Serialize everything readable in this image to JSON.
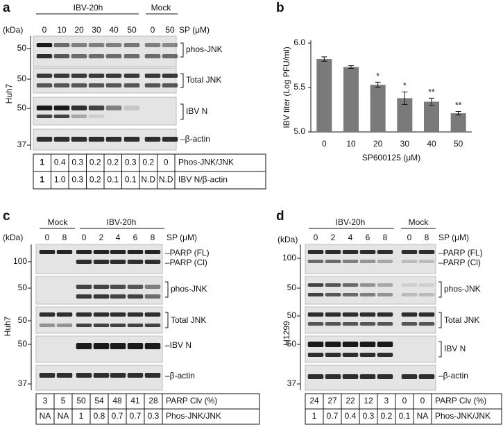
{
  "panel_a": {
    "label": "a",
    "groups": [
      "IBV-20h",
      "Mock"
    ],
    "kda": "(kDa)",
    "lanes": [
      "0",
      "10",
      "20",
      "30",
      "40",
      "50",
      "0",
      "50"
    ],
    "treatment": "SP (μM)",
    "cell_line": "Huh7",
    "markers": [
      "50",
      "50",
      "50",
      "37"
    ],
    "bands": [
      "phos-JNK",
      "Total JNK",
      "IBV N",
      "–β-actin"
    ],
    "table": {
      "rows": [
        {
          "values": [
            "1",
            "0.4",
            "0.3",
            "0.2",
            "0.2",
            "0.3",
            "0.2",
            "0"
          ],
          "label": "Phos-JNK/JNK"
        },
        {
          "values": [
            "1",
            "1.0",
            "0.3",
            "0.2",
            "0.1",
            "0.1",
            "N.D",
            "N.D"
          ],
          "label": "IBV N/β-actin"
        }
      ]
    }
  },
  "chart_data": {
    "type": "bar",
    "label": "b",
    "categories": [
      "0",
      "10",
      "20",
      "30",
      "40",
      "50"
    ],
    "values": [
      5.82,
      5.73,
      5.53,
      5.38,
      5.34,
      5.21
    ],
    "errors": [
      0.025,
      0.015,
      0.03,
      0.07,
      0.04,
      0.02
    ],
    "significance": [
      null,
      null,
      "*",
      "*",
      "**",
      "**"
    ],
    "color": "#7a7a7a",
    "ylim": [
      5.0,
      6.0
    ],
    "yticks": [
      {
        "value": 5,
        "label": "5.0"
      },
      {
        "value": 5.5,
        "label": "5.5"
      },
      {
        "value": 6,
        "label": "6.0"
      }
    ],
    "x_label": "SP600125 (μM)",
    "y_label": "IBV titer (Log PFU/ml)"
  },
  "panel_c": {
    "label": "c",
    "groups": [
      "Mock",
      "IBV-20h"
    ],
    "kda": "(kDa)",
    "lanes": [
      "0",
      "8",
      "0",
      "2",
      "4",
      "6",
      "8"
    ],
    "treatment": "SP (μM)",
    "cell_line": "Huh7",
    "markers": [
      "100",
      "50",
      "50",
      "50",
      "37"
    ],
    "bands": [
      "–PARP (FL)",
      "–PARP (Cl)",
      "phos-JNK",
      "Total JNK",
      "–IBV N",
      "–β-actin"
    ],
    "table": {
      "rows": [
        {
          "values": [
            "3",
            "5",
            "50",
            "54",
            "48",
            "41",
            "28"
          ],
          "label": "PARP Clv (%)"
        },
        {
          "values": [
            "NA",
            "NA",
            "1",
            "0.8",
            "0.7",
            "0.7",
            "0.3"
          ],
          "label": "Phos-JNK/JNK"
        }
      ]
    }
  },
  "panel_d": {
    "label": "d",
    "groups": [
      "IBV-20h",
      "Mock"
    ],
    "kda": "(kDa)",
    "lanes": [
      "0",
      "2",
      "4",
      "6",
      "8",
      "0",
      "8"
    ],
    "treatment": "SP (μM)",
    "cell_line": "H1299",
    "markers": [
      "100",
      "50",
      "50",
      "50",
      "37"
    ],
    "bands": [
      "–PARP (FL)",
      "–PARP (Cl)",
      "phos-JNK",
      "Total JNK",
      "IBV N",
      "–β-actin"
    ],
    "table": {
      "rows": [
        {
          "values": [
            "24",
            "27",
            "22",
            "12",
            "3",
            "0",
            "0"
          ],
          "label": "PARP Clv (%)"
        },
        {
          "values": [
            "1",
            "0.7",
            "0.4",
            "0.3",
            "0.2",
            "0.1",
            "NA"
          ],
          "label": "Phos-JNK/JNK"
        }
      ]
    }
  }
}
